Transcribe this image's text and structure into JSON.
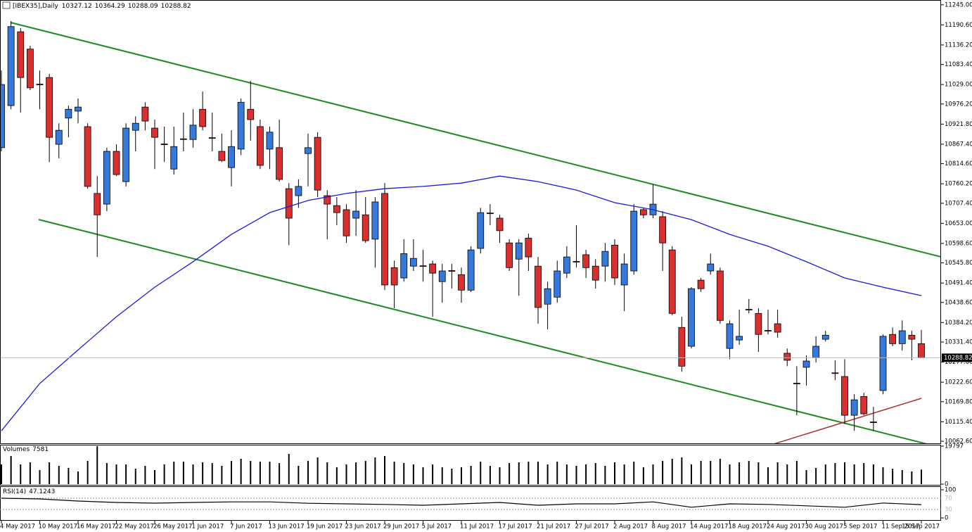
{
  "chart_data": {
    "type": "candlestick",
    "title": "[IBEX35],Daily",
    "categories": [
      "4 May 2017",
      null,
      null,
      null,
      "10 May 2017",
      null,
      null,
      null,
      "16 May 2017",
      null,
      null,
      null,
      "22 May 2017",
      null,
      null,
      null,
      "26 May 2017",
      null,
      null,
      null,
      "1 Jun 2017",
      null,
      null,
      null,
      "7 Jun 2017",
      null,
      null,
      null,
      "13 Jun 2017",
      null,
      null,
      null,
      "19 Jun 2017",
      null,
      null,
      null,
      "23 Jun 2017",
      null,
      null,
      null,
      "29 Jun 2017",
      null,
      null,
      null,
      "5 Jul 2017",
      null,
      null,
      null,
      "11 Jul 2017",
      null,
      null,
      null,
      "17 Jul 2017",
      null,
      null,
      null,
      "21 Jul 2017",
      null,
      null,
      null,
      "27 Jul 2017",
      null,
      null,
      null,
      "2 Aug 2017",
      null,
      null,
      null,
      "8 Aug 2017",
      null,
      null,
      null,
      "14 Aug 2017",
      null,
      null,
      null,
      "18 Aug 2017",
      null,
      null,
      null,
      "24 Aug 2017",
      null,
      null,
      null,
      "30 Aug 2017",
      null,
      null,
      null,
      "5 Sep 2017",
      null,
      null,
      null,
      "11 Sep 2017",
      null,
      null,
      null,
      "15 Sep 2017"
    ],
    "open": [
      10858,
      10972,
      11172,
      11125,
      11030,
      11048,
      10867,
      10938,
      10957,
      10915,
      10734,
      10705,
      10848,
      10766,
      10905,
      10968,
      10911,
      10868,
      10800,
      10881,
      10880,
      10962,
      10885,
      10848,
      10804,
      10854,
      10962,
      10915,
      10854,
      10858,
      10747,
      10728,
      10842,
      10886,
      10728,
      10701,
      10690,
      10667,
      10676,
      10610,
      10734,
      10533,
      10505,
      10537,
      10538,
      10543,
      10495,
      10525,
      10514,
      10472,
      10585,
      10681,
      10667,
      10600,
      10556,
      10613,
      10537,
      10434,
      10453,
      10518,
      10550,
      10568,
      10537,
      10537,
      10594,
      10486,
      10524,
      10690,
      10676,
      10671,
      10581,
      10371,
      10320,
      10499,
      10524,
      10524,
      10314,
      10337,
      10420,
      10409,
      10363,
      10381,
      10301,
      10220,
      10263,
      10289,
      10339,
      10248,
      10238,
      10133,
      10184,
      10115,
      10200,
      10352,
      10327,
      10350,
      10327.12
    ],
    "high": [
      11067,
      11201,
      11182,
      11134,
      11067,
      11058,
      10924,
      10972,
      10991,
      10924,
      10781,
      10858,
      10867,
      10924,
      10943,
      10981,
      10934,
      10915,
      10915,
      10953,
      10962,
      11010,
      10953,
      10896,
      10905,
      10991,
      11039,
      10934,
      10915,
      10934,
      10762,
      10772,
      10896,
      10900,
      10743,
      10724,
      10705,
      10743,
      10724,
      10724,
      10762,
      10552,
      10610,
      10610,
      10581,
      10552,
      10543,
      10543,
      10533,
      10591,
      10695,
      10705,
      10676,
      10610,
      10610,
      10625,
      10562,
      10495,
      10552,
      10591,
      10648,
      10581,
      10556,
      10600,
      10610,
      10571,
      10705,
      10695,
      10758,
      10686,
      10591,
      10400,
      10480,
      10505,
      10571,
      10533,
      10390,
      10419,
      10448,
      10423,
      10419,
      10419,
      10314,
      10266,
      10295,
      10347,
      10362,
      10282,
      10285,
      10190,
      10194,
      10156,
      10352,
      10371,
      10390,
      10362,
      10364.29
    ],
    "low": [
      10848,
      10962,
      10953,
      11014,
      10962,
      10819,
      10829,
      10886,
      10924,
      10747,
      10562,
      10686,
      10781,
      10753,
      10848,
      10905,
      10800,
      10819,
      10785,
      10848,
      10858,
      10905,
      10848,
      10819,
      10753,
      10838,
      10877,
      10800,
      10800,
      10766,
      10594,
      10695,
      10753,
      10724,
      10610,
      10648,
      10600,
      10619,
      10600,
      10533,
      10472,
      10423,
      10495,
      10524,
      10495,
      10400,
      10438,
      10476,
      10438,
      10467,
      10571,
      10648,
      10600,
      10524,
      10457,
      10524,
      10381,
      10366,
      10438,
      10505,
      10533,
      10505,
      10476,
      10495,
      10486,
      10415,
      10514,
      10667,
      10667,
      10524,
      10404,
      10251,
      10314,
      10467,
      10514,
      10381,
      10285,
      10324,
      10409,
      10305,
      10352,
      10343,
      10266,
      10133,
      10213,
      10276,
      10333,
      10228,
      10110,
      10091,
      10133,
      10091,
      10190,
      10320,
      10308,
      10282,
      10288.09
    ],
    "close": [
      11029,
      11186,
      11048,
      11020,
      11029,
      10886,
      10905,
      10962,
      10968,
      10753,
      10676,
      10848,
      10785,
      10911,
      10924,
      10930,
      10886,
      10867,
      10861,
      10882,
      10919,
      10915,
      10884,
      10823,
      10861,
      10981,
      10934,
      10810,
      10900,
      10772,
      10667,
      10753,
      10858,
      10743,
      10705,
      10682,
      10619,
      10686,
      10606,
      10711,
      10486,
      10486,
      10571,
      10558,
      10537,
      10518,
      10524,
      10524,
      10472,
      10581,
      10682,
      10680,
      10633,
      10533,
      10600,
      10562,
      10425,
      10476,
      10524,
      10562,
      10549,
      10533,
      10499,
      10577,
      10505,
      10543,
      10686,
      10676,
      10705,
      10600,
      10409,
      10266,
      10476,
      10476,
      10543,
      10390,
      10381,
      10347,
      10419,
      10352,
      10362,
      10358,
      10282,
      10219,
      10280,
      10320,
      10350,
      10247,
      10133,
      10175,
      10137,
      10114,
      10347,
      10327,
      10362,
      10339,
      10288.82
    ],
    "up_color": "#3579dc",
    "down_color": "#d9302f",
    "ylim": [
      10057,
      11258
    ],
    "yticks": [
      {
        "value": 11245.0,
        "label": "11245.00"
      },
      {
        "value": 11190.6,
        "label": "11190.60"
      },
      {
        "value": 11136.2,
        "label": "11136.20"
      },
      {
        "value": 11083.4,
        "label": "11083.40"
      },
      {
        "value": 11029.0,
        "label": "11029.00"
      },
      {
        "value": 10976.2,
        "label": "10976.20"
      },
      {
        "value": 10921.8,
        "label": "10921.80"
      },
      {
        "value": 10867.4,
        "label": "10867.40"
      },
      {
        "value": 10814.6,
        "label": "10814.60"
      },
      {
        "value": 10760.2,
        "label": "10760.20"
      },
      {
        "value": 10707.4,
        "label": "10707.40"
      },
      {
        "value": 10653.0,
        "label": "10653.00"
      },
      {
        "value": 10598.6,
        "label": "10598.60"
      },
      {
        "value": 10545.8,
        "label": "10545.80"
      },
      {
        "value": 10491.4,
        "label": "10491.40"
      },
      {
        "value": 10438.6,
        "label": "10438.60"
      },
      {
        "value": 10384.2,
        "label": "10384.20"
      },
      {
        "value": 10331.4,
        "label": "10331.40"
      },
      {
        "value": 10277.0,
        "label": "10277.00"
      },
      {
        "value": 10222.6,
        "label": "10222.60"
      },
      {
        "value": 10169.8,
        "label": "10169.80"
      },
      {
        "value": 10115.4,
        "label": "10115.40"
      },
      {
        "value": 10062.6,
        "label": "10062.60"
      }
    ],
    "ma": {
      "color": "#1a1ad6",
      "x": [
        0,
        4,
        8,
        12,
        16,
        20,
        24,
        28,
        32,
        36,
        40,
        44,
        48,
        52,
        56,
        60,
        64,
        68,
        72,
        76,
        80,
        84,
        88,
        92,
        96
      ],
      "values": [
        10091,
        10219,
        10310,
        10400,
        10480,
        10549,
        10623,
        10682,
        10715,
        10734,
        10747,
        10753,
        10762,
        10781,
        10766,
        10743,
        10709,
        10690,
        10663,
        10623,
        10591,
        10549,
        10505,
        10480,
        10457
      ]
    },
    "volume_label": "Volumes",
    "volume": [
      10265,
      14664,
      10265,
      11365,
      7332,
      11365,
      9532,
      8432,
      6599,
      12098,
      19797,
      10998,
      10265,
      10265,
      8065,
      9532,
      7332,
      10265,
      11731,
      11731,
      10265,
      11365,
      10998,
      9532,
      12098,
      13198,
      12098,
      11731,
      11731,
      10998,
      15764,
      9532,
      12098,
      13931,
      11365,
      8798,
      10265,
      11365,
      12098,
      13931,
      14664,
      11731,
      10998,
      10265,
      8798,
      10265,
      8798,
      8065,
      8798,
      9532,
      11731,
      9532,
      8798,
      10998,
      11365,
      11731,
      11731,
      10265,
      11731,
      10265,
      9532,
      10265,
      10998,
      9532,
      11365,
      10265,
      11731,
      8798,
      10265,
      12098,
      13198,
      13931,
      10265,
      12098,
      12098,
      13198,
      10265,
      11365,
      12098,
      11365,
      8798,
      11365,
      10265,
      12098,
      7332,
      8432,
      10265,
      10998,
      11365,
      10265,
      10998,
      10265,
      8798,
      8065,
      7332,
      6599,
      7581
    ],
    "volume_ylim": [
      0,
      19797
    ],
    "volume_yticks": [
      0,
      19797
    ],
    "rsi_label": "RSI(14)",
    "rsi_color": "#000000",
    "rsi": {
      "x": [
        0,
        4,
        8,
        12,
        16,
        20,
        24,
        28,
        32,
        36,
        40,
        44,
        48,
        52,
        56,
        60,
        64,
        68,
        72,
        76,
        80,
        84,
        88,
        92,
        96
      ],
      "values": [
        70,
        67.5,
        60,
        55,
        52.5,
        55,
        57,
        57,
        52,
        50,
        48,
        45,
        50,
        55,
        45,
        50,
        50,
        57,
        38,
        50,
        48,
        43,
        38,
        53,
        47.1243
      ]
    },
    "rsi_ylim": [
      0,
      100
    ],
    "rsi_yticks": [
      0,
      30,
      70,
      100
    ]
  }
}
